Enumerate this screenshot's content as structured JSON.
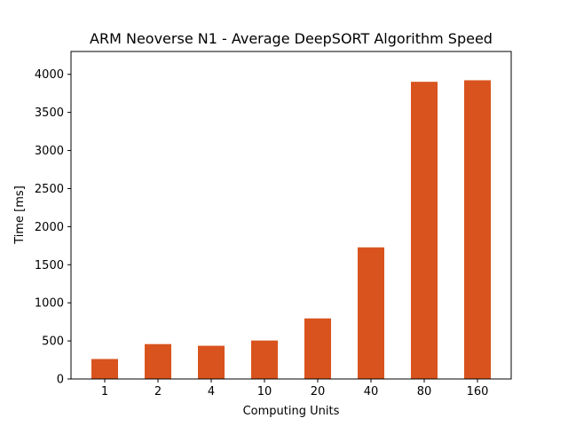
{
  "chart_data": {
    "type": "bar",
    "title": "ARM Neoverse N1 - Average DeepSORT Algorithm Speed",
    "xlabel": "Computing Units",
    "ylabel": "Time [ms]",
    "categories": [
      "1",
      "2",
      "4",
      "10",
      "20",
      "40",
      "80",
      "160"
    ],
    "values": [
      262,
      458,
      436,
      505,
      795,
      1728,
      3902,
      3922
    ],
    "ylim": [
      0,
      4300
    ],
    "yticks": [
      0,
      500,
      1000,
      1500,
      2000,
      2500,
      3000,
      3500,
      4000
    ],
    "bar_color": "#d9531e",
    "grid": false,
    "legend": null
  }
}
